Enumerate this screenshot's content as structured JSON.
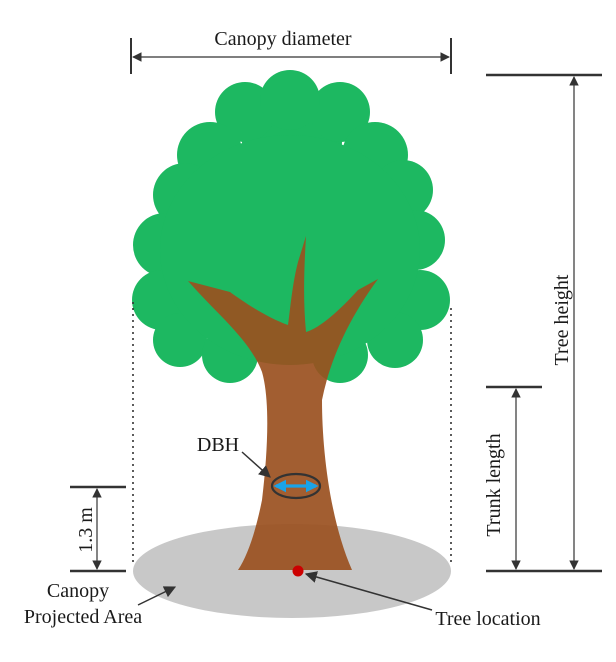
{
  "labels": {
    "canopy_diameter": "Canopy diameter",
    "tree_height": "Tree height",
    "trunk_length": "Trunk length",
    "dbh": "DBH",
    "breast_height": "1.3 m",
    "canopy_projected_area_line1": "Canopy",
    "canopy_projected_area_line2": "Projected Area",
    "tree_location": "Tree location"
  },
  "colors": {
    "canopy": "#1db861",
    "trunk": "#9a5020",
    "ground_area": "#c8c8c8",
    "dbh_arrow": "#1aa3e8",
    "location_dot": "#cc0000",
    "lines": "#333333"
  }
}
